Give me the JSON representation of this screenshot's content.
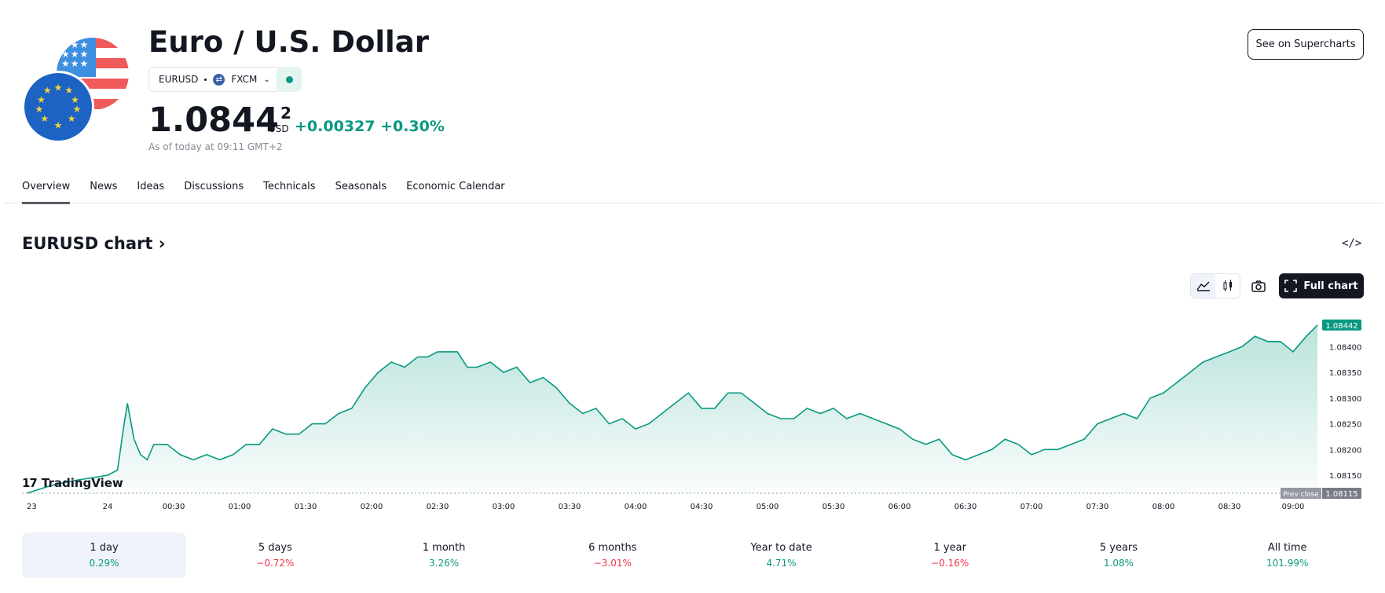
{
  "header": {
    "title": "Euro / U.S. Dollar",
    "symbol": "EURUSD",
    "broker": "FXCM",
    "price_main": "1.0844",
    "price_sup": "2",
    "currency": "USD",
    "change": "+0.00327 +0.30%",
    "as_of": "As of today at 09:11 GMT+2",
    "supercharts_label": "See on Supercharts"
  },
  "tabs": [
    "Overview",
    "News",
    "Ideas",
    "Discussions",
    "Technicals",
    "Seasonals",
    "Economic Calendar"
  ],
  "chart_section": {
    "title": "EURUSD chart",
    "full_chart_label": "Full chart",
    "brand": "TradingView",
    "last_price_label": "1.08442",
    "prev_close_label": "Prev close",
    "prev_close_value": "1.08115"
  },
  "periods": [
    {
      "label": "1 day",
      "value": "0.29%",
      "dir": "pos"
    },
    {
      "label": "5 days",
      "value": "−0.72%",
      "dir": "neg"
    },
    {
      "label": "1 month",
      "value": "3.26%",
      "dir": "pos"
    },
    {
      "label": "6 months",
      "value": "−3.01%",
      "dir": "neg"
    },
    {
      "label": "Year to date",
      "value": "4.71%",
      "dir": "pos"
    },
    {
      "label": "1 year",
      "value": "−0.16%",
      "dir": "neg"
    },
    {
      "label": "5 years",
      "value": "1.08%",
      "dir": "pos"
    },
    {
      "label": "All time",
      "value": "101.99%",
      "dir": "pos"
    }
  ],
  "colors": {
    "line": "#089981",
    "positive": "#089981",
    "negative": "#f23645"
  },
  "chart_data": {
    "type": "area",
    "x_ticks": [
      "23",
      "24",
      "00:30",
      "01:00",
      "01:30",
      "02:00",
      "02:30",
      "03:00",
      "03:30",
      "04:00",
      "04:30",
      "05:00",
      "05:30",
      "06:00",
      "06:30",
      "07:00",
      "07:30",
      "08:00",
      "08:30",
      "09:00"
    ],
    "y_ticks": [
      1.0815,
      1.082,
      1.0825,
      1.083,
      1.0835,
      1.084
    ],
    "ylim": [
      1.08115,
      1.0846
    ],
    "prev_close": 1.08115,
    "last": 1.08442,
    "series": [
      {
        "points": [
          [
            0,
            1.08115
          ],
          [
            0.3,
            1.0813
          ],
          [
            0.6,
            1.0814
          ],
          [
            1.0,
            1.0815
          ],
          [
            1.15,
            1.0816
          ],
          [
            1.25,
            1.0825
          ],
          [
            1.3,
            1.0829
          ],
          [
            1.4,
            1.0822
          ],
          [
            1.5,
            1.0819
          ],
          [
            1.6,
            1.0818
          ],
          [
            1.7,
            1.0821
          ],
          [
            1.9,
            1.0821
          ],
          [
            2.1,
            1.0819
          ],
          [
            2.3,
            1.0818
          ],
          [
            2.5,
            1.0819
          ],
          [
            2.7,
            1.0818
          ],
          [
            2.9,
            1.0819
          ],
          [
            3.1,
            1.0821
          ],
          [
            3.3,
            1.0821
          ],
          [
            3.5,
            1.0824
          ],
          [
            3.7,
            1.0823
          ],
          [
            3.9,
            1.0823
          ],
          [
            4.1,
            1.0825
          ],
          [
            4.3,
            1.0825
          ],
          [
            4.5,
            1.0827
          ],
          [
            4.7,
            1.0828
          ],
          [
            4.9,
            1.0832
          ],
          [
            5.1,
            1.0835
          ],
          [
            5.3,
            1.0837
          ],
          [
            5.5,
            1.0836
          ],
          [
            5.7,
            1.0838
          ],
          [
            5.85,
            1.0838
          ],
          [
            6.0,
            1.0839
          ],
          [
            6.15,
            1.0839
          ],
          [
            6.3,
            1.0839
          ],
          [
            6.45,
            1.0836
          ],
          [
            6.6,
            1.0836
          ],
          [
            6.8,
            1.0837
          ],
          [
            7.0,
            1.0835
          ],
          [
            7.2,
            1.0836
          ],
          [
            7.4,
            1.0833
          ],
          [
            7.6,
            1.0834
          ],
          [
            7.8,
            1.0832
          ],
          [
            8.0,
            1.0829
          ],
          [
            8.2,
            1.0827
          ],
          [
            8.4,
            1.0828
          ],
          [
            8.6,
            1.0825
          ],
          [
            8.8,
            1.0826
          ],
          [
            9.0,
            1.0824
          ],
          [
            9.2,
            1.0825
          ],
          [
            9.4,
            1.0827
          ],
          [
            9.6,
            1.0829
          ],
          [
            9.8,
            1.0831
          ],
          [
            10.0,
            1.0828
          ],
          [
            10.2,
            1.0828
          ],
          [
            10.4,
            1.0831
          ],
          [
            10.6,
            1.0831
          ],
          [
            10.8,
            1.0829
          ],
          [
            11.0,
            1.0827
          ],
          [
            11.2,
            1.0826
          ],
          [
            11.4,
            1.0826
          ],
          [
            11.6,
            1.0828
          ],
          [
            11.8,
            1.0827
          ],
          [
            12.0,
            1.0828
          ],
          [
            12.2,
            1.0826
          ],
          [
            12.4,
            1.0827
          ],
          [
            12.6,
            1.0826
          ],
          [
            12.8,
            1.0825
          ],
          [
            13.0,
            1.0824
          ],
          [
            13.2,
            1.0822
          ],
          [
            13.4,
            1.0821
          ],
          [
            13.6,
            1.0822
          ],
          [
            13.8,
            1.0819
          ],
          [
            14.0,
            1.0818
          ],
          [
            14.2,
            1.0819
          ],
          [
            14.4,
            1.082
          ],
          [
            14.6,
            1.0822
          ],
          [
            14.8,
            1.0821
          ],
          [
            15.0,
            1.0819
          ],
          [
            15.2,
            1.082
          ],
          [
            15.4,
            1.082
          ],
          [
            15.6,
            1.0821
          ],
          [
            15.8,
            1.0822
          ],
          [
            16.0,
            1.0825
          ],
          [
            16.2,
            1.0826
          ],
          [
            16.4,
            1.0827
          ],
          [
            16.6,
            1.0826
          ],
          [
            16.8,
            1.083
          ],
          [
            17.0,
            1.0831
          ],
          [
            17.2,
            1.0833
          ],
          [
            17.4,
            1.0835
          ],
          [
            17.6,
            1.0837
          ],
          [
            17.8,
            1.0838
          ],
          [
            18.0,
            1.0839
          ],
          [
            18.2,
            1.084
          ],
          [
            18.4,
            1.0842
          ],
          [
            18.6,
            1.0841
          ],
          [
            18.8,
            1.0841
          ],
          [
            19.0,
            1.0839
          ],
          [
            19.2,
            1.0842
          ],
          [
            19.37,
            1.08442
          ]
        ]
      }
    ]
  }
}
